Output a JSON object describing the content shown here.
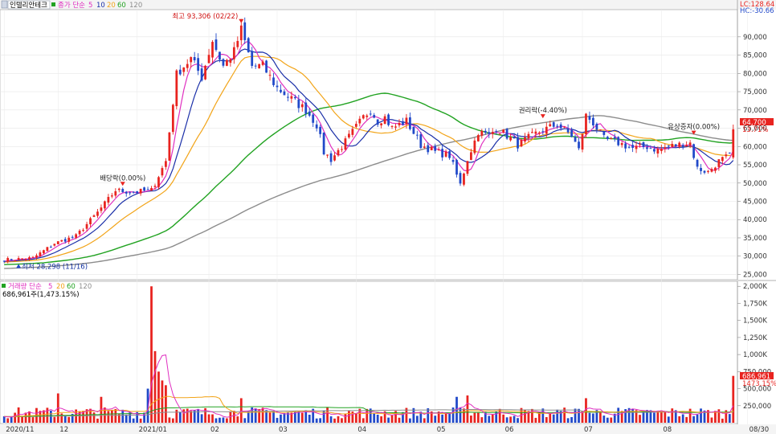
{
  "header": {
    "stock_name": "인텔리안테크",
    "price_ma_label": "종가 단순",
    "ma_periods": [
      "5",
      "10",
      "20",
      "60",
      "120"
    ],
    "volume_label": "거래량 단순",
    "volume_ma_periods": [
      "5",
      "20",
      "60",
      "120"
    ],
    "volume_last": "686,961주(1,473.15%)",
    "lc_label": "LC:128.64",
    "hc_label": "HC:-30.66"
  },
  "colors": {
    "up": "#e8231f",
    "down": "#2149c9",
    "ma5": "#e030c0",
    "ma10": "#1a2fa8",
    "ma20": "#f2a418",
    "ma60": "#22a322",
    "ma120": "#8c8c8c",
    "vol_ma5": "#e030c0",
    "vol_ma20": "#f2a418",
    "vol_ma60": "#22a322",
    "vol_ma120": "#8c8c8c"
  },
  "chart_data": {
    "type": "candlestick",
    "price_axis": {
      "ylim": [
        24000,
        97000
      ],
      "ticks": [
        25000,
        30000,
        35000,
        40000,
        45000,
        50000,
        55000,
        60000,
        65000,
        70000,
        75000,
        80000,
        85000,
        90000
      ],
      "tick_labels": [
        "25,000",
        "30,000",
        "35,000",
        "40,000",
        "45,000",
        "50,000",
        "55,000",
        "60,000",
        "65,000",
        "70,000",
        "75,000",
        "80,000",
        "85,000",
        "90,000"
      ]
    },
    "volume_axis": {
      "ylim": [
        0,
        2050000
      ],
      "ticks": [
        250000,
        500000,
        750000,
        1000000,
        1250000,
        1500000,
        1750000,
        2000000
      ],
      "tick_labels": [
        "250,000",
        "500,000",
        "750,000",
        "1,000K",
        "1,250K",
        "1,500K",
        "1,750K",
        "2,000K"
      ]
    },
    "x_labels": [
      {
        "i": 0,
        "label": "2020/11"
      },
      {
        "i": 15,
        "label": "12"
      },
      {
        "i": 37,
        "label": "2021/01"
      },
      {
        "i": 57,
        "label": "02"
      },
      {
        "i": 76,
        "label": "03"
      },
      {
        "i": 98,
        "label": "04"
      },
      {
        "i": 120,
        "label": "05"
      },
      {
        "i": 139,
        "label": "06"
      },
      {
        "i": 161,
        "label": "07"
      },
      {
        "i": 183,
        "label": "08"
      },
      {
        "i": 207,
        "label": "08/30"
      }
    ],
    "annotations": [
      {
        "i": 66,
        "price": 93306,
        "text": "최고 93,306 (02/22)"
      },
      {
        "i": 4,
        "price": 28298,
        "text": "최저 28,298 (11/16)"
      },
      {
        "i": 33,
        "price": 49000,
        "text": "배당락(0.00%)"
      },
      {
        "i": 150,
        "price": 67500,
        "text": "권리락(-4.40%)"
      },
      {
        "i": 192,
        "price": 63000,
        "text": "유상증자(0.00%)"
      }
    ],
    "last_price_label": "64,700",
    "last_change_label": "13.71%",
    "last_volume_label": "686,961",
    "last_volume_change_label": "1473.15%",
    "keypoints": [
      [
        0,
        29000
      ],
      [
        8,
        29500
      ],
      [
        14,
        33500
      ],
      [
        20,
        35500
      ],
      [
        26,
        42000
      ],
      [
        31,
        48000
      ],
      [
        36,
        47500
      ],
      [
        41,
        48000
      ],
      [
        45,
        56000
      ],
      [
        48,
        80000
      ],
      [
        52,
        84000
      ],
      [
        55,
        79000
      ],
      [
        58,
        89000
      ],
      [
        61,
        82000
      ],
      [
        64,
        86000
      ],
      [
        66,
        92000
      ],
      [
        69,
        82000
      ],
      [
        72,
        82000
      ],
      [
        76,
        76000
      ],
      [
        80,
        73000
      ],
      [
        84,
        70000
      ],
      [
        87,
        66000
      ],
      [
        89,
        58500
      ],
      [
        91,
        56500
      ],
      [
        94,
        60000
      ],
      [
        97,
        64000
      ],
      [
        100,
        68000
      ],
      [
        102,
        70000
      ],
      [
        104,
        67000
      ],
      [
        106,
        68000
      ],
      [
        108,
        65000
      ],
      [
        112,
        67000
      ],
      [
        116,
        60500
      ],
      [
        120,
        58500
      ],
      [
        124,
        57500
      ],
      [
        127,
        49500
      ],
      [
        129,
        56500
      ],
      [
        132,
        64000
      ],
      [
        135,
        63000
      ],
      [
        137,
        65000
      ],
      [
        140,
        63000
      ],
      [
        143,
        60500
      ],
      [
        147,
        63000
      ],
      [
        150,
        64500
      ],
      [
        154,
        66000
      ],
      [
        158,
        63000
      ],
      [
        160,
        59000
      ],
      [
        162,
        68500
      ],
      [
        164,
        66500
      ],
      [
        167,
        62000
      ],
      [
        171,
        61000
      ],
      [
        175,
        59500
      ],
      [
        179,
        60000
      ],
      [
        182,
        59000
      ],
      [
        185,
        60000
      ],
      [
        188,
        60500
      ],
      [
        191,
        61000
      ],
      [
        193,
        54000
      ],
      [
        196,
        53000
      ],
      [
        199,
        56000
      ],
      [
        202,
        57500
      ],
      [
        203,
        64700
      ]
    ],
    "volume_spikes": [
      {
        "i": 41,
        "v": 2000000
      },
      {
        "i": 42,
        "v": 1050000
      },
      {
        "i": 43,
        "v": 750000
      },
      {
        "i": 44,
        "v": 620000
      },
      {
        "i": 45,
        "v": 550000
      },
      {
        "i": 40,
        "v": 500000
      },
      {
        "i": 66,
        "v": 360000
      },
      {
        "i": 15,
        "v": 430000
      },
      {
        "i": 27,
        "v": 380000
      },
      {
        "i": 126,
        "v": 380000
      },
      {
        "i": 129,
        "v": 400000
      },
      {
        "i": 162,
        "v": 360000
      },
      {
        "i": 203,
        "v": 686961
      }
    ]
  }
}
